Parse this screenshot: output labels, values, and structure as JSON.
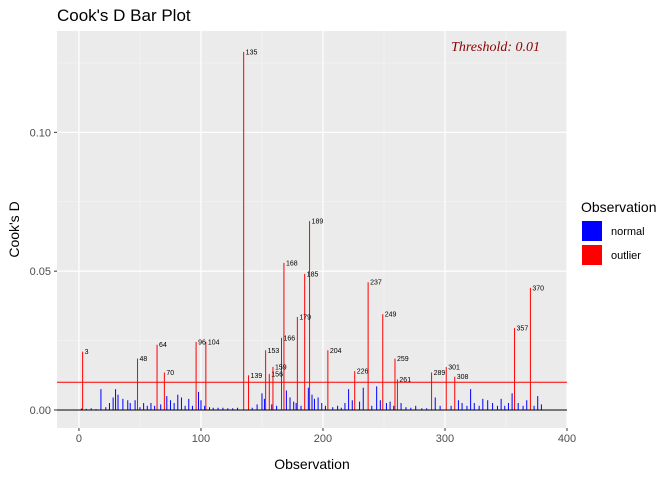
{
  "chart_data": {
    "type": "bar",
    "title": "Cook's D Bar Plot",
    "xlabel": "Observation",
    "ylabel": "Cook's D",
    "xlim": [
      -18,
      400
    ],
    "ylim": [
      -0.0065,
      0.1365
    ],
    "x_ticks": [
      0,
      100,
      200,
      300,
      400
    ],
    "x_tick_labels": [
      "0",
      "100",
      "200",
      "300",
      "400"
    ],
    "y_ticks": [
      0.0,
      0.05,
      0.1
    ],
    "y_tick_labels": [
      "0.00",
      "0.05",
      "0.10"
    ],
    "threshold": 0.01,
    "threshold_label": "Threshold: 0.01",
    "grid": true,
    "legend": {
      "title": "Observation",
      "placement": "right",
      "entries": [
        {
          "label": "normal",
          "color": "#0000ff"
        },
        {
          "label": "outlier",
          "color": "#ff0000"
        }
      ]
    },
    "colors": {
      "normal": "#0000ff",
      "outlier": "#ff0000",
      "threshold_line": "#ff0000",
      "threshold_text": "#8b0000",
      "panel": "#ebebeb"
    },
    "series": [
      {
        "name": "outlier",
        "points": [
          {
            "x": 3,
            "y": 0.021,
            "label": "3"
          },
          {
            "x": 48,
            "y": 0.0185,
            "label": "48"
          },
          {
            "x": 64,
            "y": 0.0235,
            "label": "64"
          },
          {
            "x": 70,
            "y": 0.0135,
            "label": "70"
          },
          {
            "x": 96,
            "y": 0.0245,
            "label": "96"
          },
          {
            "x": 104,
            "y": 0.0245,
            "label": "104"
          },
          {
            "x": 135,
            "y": 0.129,
            "label": "135"
          },
          {
            "x": 139,
            "y": 0.0125,
            "label": "139"
          },
          {
            "x": 153,
            "y": 0.0215,
            "label": "153"
          },
          {
            "x": 156,
            "y": 0.013,
            "label": "156"
          },
          {
            "x": 159,
            "y": 0.0155,
            "label": "159"
          },
          {
            "x": 166,
            "y": 0.026,
            "label": "166"
          },
          {
            "x": 168,
            "y": 0.053,
            "label": "168"
          },
          {
            "x": 179,
            "y": 0.0335,
            "label": "179"
          },
          {
            "x": 185,
            "y": 0.049,
            "label": "185"
          },
          {
            "x": 189,
            "y": 0.068,
            "label": "189"
          },
          {
            "x": 204,
            "y": 0.0215,
            "label": "204"
          },
          {
            "x": 226,
            "y": 0.014,
            "label": "226"
          },
          {
            "x": 237,
            "y": 0.046,
            "label": "237"
          },
          {
            "x": 249,
            "y": 0.0345,
            "label": "249"
          },
          {
            "x": 259,
            "y": 0.0185,
            "label": "259"
          },
          {
            "x": 261,
            "y": 0.011,
            "label": "261"
          },
          {
            "x": 289,
            "y": 0.0135,
            "label": "289"
          },
          {
            "x": 301,
            "y": 0.0155,
            "label": "301"
          },
          {
            "x": 308,
            "y": 0.012,
            "label": "308"
          },
          {
            "x": 357,
            "y": 0.0295,
            "label": "357"
          },
          {
            "x": 370,
            "y": 0.044,
            "label": "370"
          }
        ]
      },
      {
        "name": "normal",
        "points": [
          {
            "x": 2,
            "y": 0.0005
          },
          {
            "x": 6,
            "y": 0.0004
          },
          {
            "x": 10,
            "y": 0.0006
          },
          {
            "x": 14,
            "y": 0.0003
          },
          {
            "x": 18,
            "y": 0.0075
          },
          {
            "x": 22,
            "y": 0.001
          },
          {
            "x": 25,
            "y": 0.0025
          },
          {
            "x": 28,
            "y": 0.0045
          },
          {
            "x": 30,
            "y": 0.0075
          },
          {
            "x": 32,
            "y": 0.0055
          },
          {
            "x": 36,
            "y": 0.004
          },
          {
            "x": 40,
            "y": 0.0035
          },
          {
            "x": 42,
            "y": 0.0025
          },
          {
            "x": 46,
            "y": 0.0035
          },
          {
            "x": 50,
            "y": 0.001
          },
          {
            "x": 53,
            "y": 0.0025
          },
          {
            "x": 56,
            "y": 0.0015
          },
          {
            "x": 59,
            "y": 0.0025
          },
          {
            "x": 62,
            "y": 0.0015
          },
          {
            "x": 67,
            "y": 0.002
          },
          {
            "x": 72,
            "y": 0.005
          },
          {
            "x": 75,
            "y": 0.0035
          },
          {
            "x": 78,
            "y": 0.0025
          },
          {
            "x": 81,
            "y": 0.0055
          },
          {
            "x": 84,
            "y": 0.0045
          },
          {
            "x": 87,
            "y": 0.0015
          },
          {
            "x": 90,
            "y": 0.004
          },
          {
            "x": 93,
            "y": 0.0015
          },
          {
            "x": 98,
            "y": 0.0065
          },
          {
            "x": 100,
            "y": 0.0035
          },
          {
            "x": 103,
            "y": 0.0015
          },
          {
            "x": 107,
            "y": 0.001
          },
          {
            "x": 110,
            "y": 0.0008
          },
          {
            "x": 114,
            "y": 0.0008
          },
          {
            "x": 118,
            "y": 0.0008
          },
          {
            "x": 122,
            "y": 0.0006
          },
          {
            "x": 126,
            "y": 0.0006
          },
          {
            "x": 130,
            "y": 0.0008
          },
          {
            "x": 142,
            "y": 0.0008
          },
          {
            "x": 146,
            "y": 0.002
          },
          {
            "x": 150,
            "y": 0.006
          },
          {
            "x": 152,
            "y": 0.004
          },
          {
            "x": 158,
            "y": 0.002
          },
          {
            "x": 162,
            "y": 0.0015
          },
          {
            "x": 170,
            "y": 0.007
          },
          {
            "x": 173,
            "y": 0.0045
          },
          {
            "x": 176,
            "y": 0.003
          },
          {
            "x": 178,
            "y": 0.0025
          },
          {
            "x": 182,
            "y": 0.0015
          },
          {
            "x": 188,
            "y": 0.008
          },
          {
            "x": 191,
            "y": 0.0055
          },
          {
            "x": 193,
            "y": 0.004
          },
          {
            "x": 196,
            "y": 0.0045
          },
          {
            "x": 199,
            "y": 0.0025
          },
          {
            "x": 202,
            "y": 0.0015
          },
          {
            "x": 208,
            "y": 0.001
          },
          {
            "x": 212,
            "y": 0.0015
          },
          {
            "x": 215,
            "y": 0.0008
          },
          {
            "x": 218,
            "y": 0.0025
          },
          {
            "x": 221,
            "y": 0.0075
          },
          {
            "x": 224,
            "y": 0.0035
          },
          {
            "x": 230,
            "y": 0.003
          },
          {
            "x": 233,
            "y": 0.008
          },
          {
            "x": 240,
            "y": 0.0015
          },
          {
            "x": 244,
            "y": 0.0085
          },
          {
            "x": 247,
            "y": 0.0035
          },
          {
            "x": 252,
            "y": 0.0025
          },
          {
            "x": 255,
            "y": 0.003
          },
          {
            "x": 258,
            "y": 0.0015
          },
          {
            "x": 264,
            "y": 0.0025
          },
          {
            "x": 268,
            "y": 0.001
          },
          {
            "x": 272,
            "y": 0.0008
          },
          {
            "x": 276,
            "y": 0.0015
          },
          {
            "x": 281,
            "y": 0.0006
          },
          {
            "x": 285,
            "y": 0.0006
          },
          {
            "x": 292,
            "y": 0.0045
          },
          {
            "x": 296,
            "y": 0.0015
          },
          {
            "x": 305,
            "y": 0.0015
          },
          {
            "x": 311,
            "y": 0.0035
          },
          {
            "x": 314,
            "y": 0.0025
          },
          {
            "x": 318,
            "y": 0.0015
          },
          {
            "x": 321,
            "y": 0.0075
          },
          {
            "x": 324,
            "y": 0.0025
          },
          {
            "x": 328,
            "y": 0.0015
          },
          {
            "x": 331,
            "y": 0.004
          },
          {
            "x": 335,
            "y": 0.0035
          },
          {
            "x": 339,
            "y": 0.0025
          },
          {
            "x": 343,
            "y": 0.0015
          },
          {
            "x": 346,
            "y": 0.004
          },
          {
            "x": 349,
            "y": 0.0015
          },
          {
            "x": 352,
            "y": 0.0025
          },
          {
            "x": 355,
            "y": 0.006
          },
          {
            "x": 360,
            "y": 0.0025
          },
          {
            "x": 364,
            "y": 0.0015
          },
          {
            "x": 367,
            "y": 0.0035
          },
          {
            "x": 373,
            "y": 0.0015
          },
          {
            "x": 376,
            "y": 0.005
          },
          {
            "x": 379,
            "y": 0.002
          }
        ]
      }
    ]
  }
}
